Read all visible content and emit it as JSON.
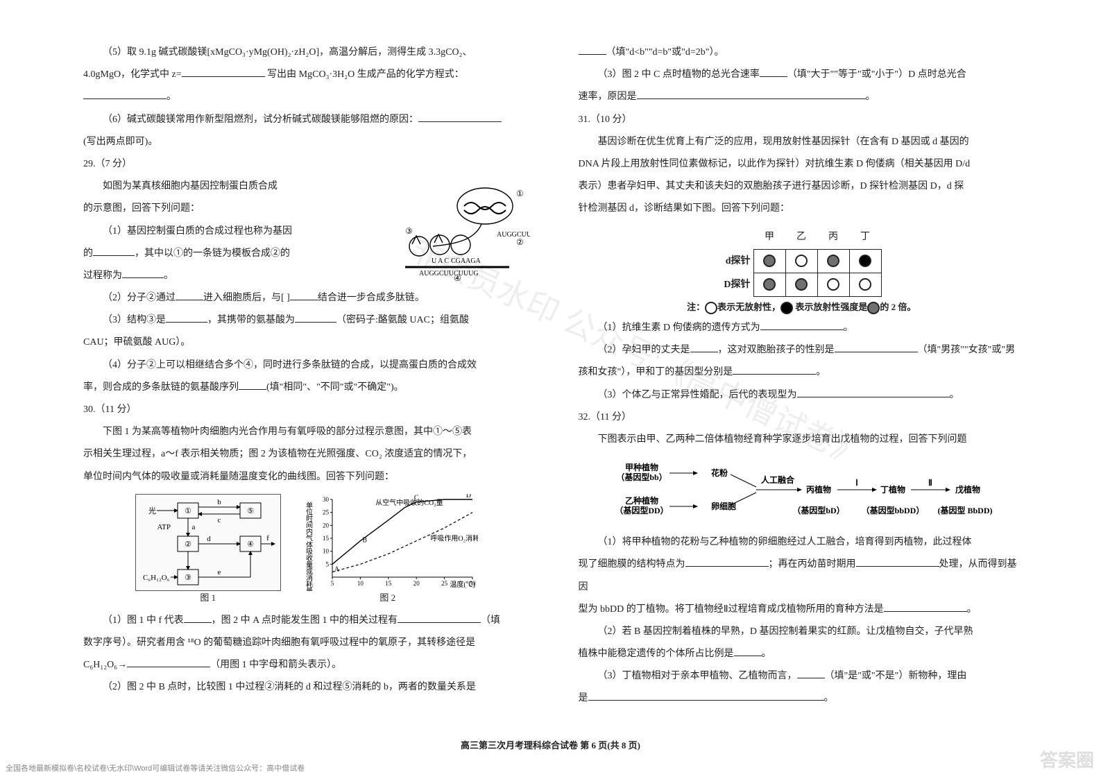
{
  "colors": {
    "text": "#222222",
    "bg": "#ffffff",
    "border": "#555555",
    "watermark": "rgba(120,120,120,0.13)",
    "corner": "#c9c9c9"
  },
  "footer": "高三第三次月考理科综合试卷  第 6 页(共 8 页)",
  "srcnote": "全国各地最新模拟卷\\名校试卷\\无水印\\Word可编辑试卷等请关注微信公众号：高中僧试卷",
  "corner": "答案圈",
  "watermark": "非会员水印  公众号:《高中僧试卷》",
  "left": {
    "p5": "（5）取 9.1g 碱式碳酸镁[xMgCO₃·yMg(OH)₂·zH₂O]，高温分解后，测得生成 3.3gCO₂、",
    "p5b": "4.0gMgO，化学式中 z=",
    "p5c": "写出由 MgCO₃·3H₂O 生成产品的化学方程式：",
    "p6": "（6）碱式碳酸镁常用作新型阻燃剂，试分析碱式碳酸镁能够阻燃的原因：",
    "p6b": "(写出两点即可)。",
    "q29": "29.（7 分）",
    "q29a": "如图为某真核细胞内基因控制蛋白质合成",
    "q29a2": "的示意图，回答下列问题：",
    "q29_1": "（1）基因控制蛋白质的合成过程也称为基因",
    "q29_1b": "的",
    "q29_1c": "，其中以①的一条链为模板合成②的",
    "q29_1d": "过程称为",
    "q29_2a": "（2）分子②通过",
    "q29_2b": "进入细胞质后，与[   ]",
    "q29_2c": "结合进一步合成多肽链。",
    "q29_3a": "（3）结构③是",
    "q29_3b": "，其携带的氨基酸为",
    "q29_3c": "（密码子:酪氨酸 UAC；组氨酸",
    "q29_3d": "CAU；甲硫氨酸 AUG）。",
    "q29_4": "（4）分子②上可以相继结合多个④，同时进行多条肽链的合成，以提高蛋白质的合成效",
    "q29_4b": "率，则合成的多条肽链的氨基酸序列",
    "q29_4c": "(填\"相同\"、\"不同\"或\"不确定\")。",
    "q30": "30.（11 分）",
    "q30a": "下图 1 为某高等植物叶肉细胞内光合作用与有氧呼吸的部分过程示意图，其中①～⑤表",
    "q30a2": "示相关生理过程，a～f 表示相关物质；图 2 为该植物在光照强度、CO₂ 浓度适宜的情况下，",
    "q30a3": "单位时间内气体的吸收量或消耗量随温度变化的曲线图。回答下列问题：",
    "fig1": {
      "caption": "图 1",
      "nodes": [
        "①",
        "②",
        "③",
        "④",
        "⑤"
      ],
      "left_label_top": "光",
      "left_label_mid": "ATP",
      "left_label_bot": "C₆H₁₂O₆",
      "edges": [
        "a",
        "b",
        "c",
        "d",
        "e",
        "f"
      ],
      "abc_tail": "→"
    },
    "fig2": {
      "caption": "图 2",
      "ylabel": "单位时间内气体吸收量或消耗量",
      "title_top": "从空气中吸收的CO₂量",
      "title_mid": "呼吸作用O₂消耗量",
      "xlabel": "温度(℃)",
      "xticks": [
        5,
        10,
        15,
        20,
        25,
        30
      ],
      "yticks": [
        5,
        10,
        15,
        20,
        25,
        30
      ],
      "points": [
        "A",
        "B",
        "C",
        "D"
      ],
      "series_co2": [
        [
          5,
          5
        ],
        [
          10,
          14
        ],
        [
          15,
          22
        ],
        [
          18,
          27
        ],
        [
          20,
          29
        ],
        [
          25,
          30
        ],
        [
          30,
          30
        ]
      ],
      "series_o2": [
        [
          5,
          2
        ],
        [
          10,
          5
        ],
        [
          15,
          9
        ],
        [
          20,
          14
        ],
        [
          25,
          19
        ],
        [
          30,
          25
        ]
      ],
      "line_color": "#000000",
      "dash_color": "#000000"
    },
    "q30_1a": "（1）图 1 中 f 代表",
    "q30_1b": "，图 2 中 A 点时能发生图 1 中的相关过程有",
    "q30_1c": "（填",
    "q30_1d": "数字序号）。研究者用含 ¹⁸O 的葡萄糖追踪叶肉细胞有氧呼吸过程中的氧原子，其转移途径是",
    "q30_1e": "C₆H₁₂O₆→",
    "q30_1f": "（用图 1 中字母和箭头表示）。",
    "q30_2": "（2）图 2 中 B 点时，比较图 1 中过程②消耗的 d 和过程⑤消耗的 b，两者的数量关系是"
  },
  "right": {
    "q30_2b": "（填\"d<b\"\"d=b\"或\"d=2b\"）。",
    "q30_3a": "（3）图 2 中 C 点时植物的总光合速率",
    "q30_3b": "（填\"大于\"\"等于\"或\"小于\"）D 点时总光合",
    "q30_3c": "速率，原因是",
    "q31": "31.（10 分）",
    "q31a": "基因诊断在优生优育上有广泛的应用，现用放射性基因探针（在含有 D 基因或 d 基因的",
    "q31a2": "DNA 片段上用放射性同位素做标记，以此作为探针）对抗维生素 D 佝偻病（相关基因用 D/d",
    "q31a3": "表示）患者孕妇甲、其丈夫和该夫妇的双胞胎孩子进行基因诊断，D 探针检测基因 D，d 探",
    "q31a4": "针检测基因 d，诊断结果如下图。回答下列问题：",
    "probe": {
      "cols": [
        "甲",
        "乙",
        "丙",
        "丁"
      ],
      "rows": [
        {
          "label": "d探针",
          "cells": [
            "grey",
            "empty",
            "grey",
            "black"
          ]
        },
        {
          "label": "D探针",
          "cells": [
            "grey",
            "grey",
            "empty",
            "empty"
          ]
        }
      ],
      "note": "注：○表示无放射性，● 表示放射性强度是 ◐ 的 2 倍。"
    },
    "q31_1": "（1）抗维生素 D 佝偻病的遗传方式为",
    "q31_2a": "（2）孕妇甲的丈夫是",
    "q31_2b": "，这对双胞胎孩子的性别是",
    "q31_2c": "（填\"男孩\"\"女孩\"或\"男",
    "q31_2d": "孩和女孩\"），甲和丁的基因型分别是",
    "q31_3": "（3）个体乙与正常异性婚配，后代的表现型为",
    "q32": "32.（11 分）",
    "q32a": "下图表示由甲、乙两种二倍体植物经育种学家逐步培育出戊植物的过程，回答下列问题",
    "flow": {
      "jia": "甲种植物",
      "jia_gt": "（基因型bb）",
      "jia_prod": "花粉",
      "yi": "乙种植物",
      "yi_gt": "（基因型DD）",
      "yi_prod": "卵细胞",
      "fuse": "人工融合",
      "bing": "丙植物",
      "ding": "丁植物",
      "wu": "戊植物",
      "step1": "Ⅰ",
      "step2": "Ⅱ",
      "bing_gt": "（基因型bD）",
      "ding_gt": "（基因型bbDD）",
      "wu_gt": "(基因型 BbDD)"
    },
    "q32_1a": "（1）将甲种植物的花粉与乙种植物的卵细胞经过人工融合，培育得到丙植物，此过程体",
    "q32_1b": "现了细胞膜的结构特点为",
    "q32_1c": "；再在丙幼苗时期用",
    "q32_1d": "处理，从而得到基因",
    "q32_1e": "型为 bbDD 的丁植物。将丁植物经Ⅱ过程培育成戊植物所用的育种方法是",
    "q32_2a": "（2）若 B 基因控制着植株的早熟，D 基因控制着果实的红颜。让戊植物自交，子代早熟",
    "q32_2b": "植株中能稳定遗传的个体所占比例是",
    "q32_3a": "（3）丁植物相对于亲本甲植物、乙植物而言，",
    "q32_3b": "（填\"是\"或\"不是\"）新物种，理由",
    "q32_3c": "是"
  }
}
